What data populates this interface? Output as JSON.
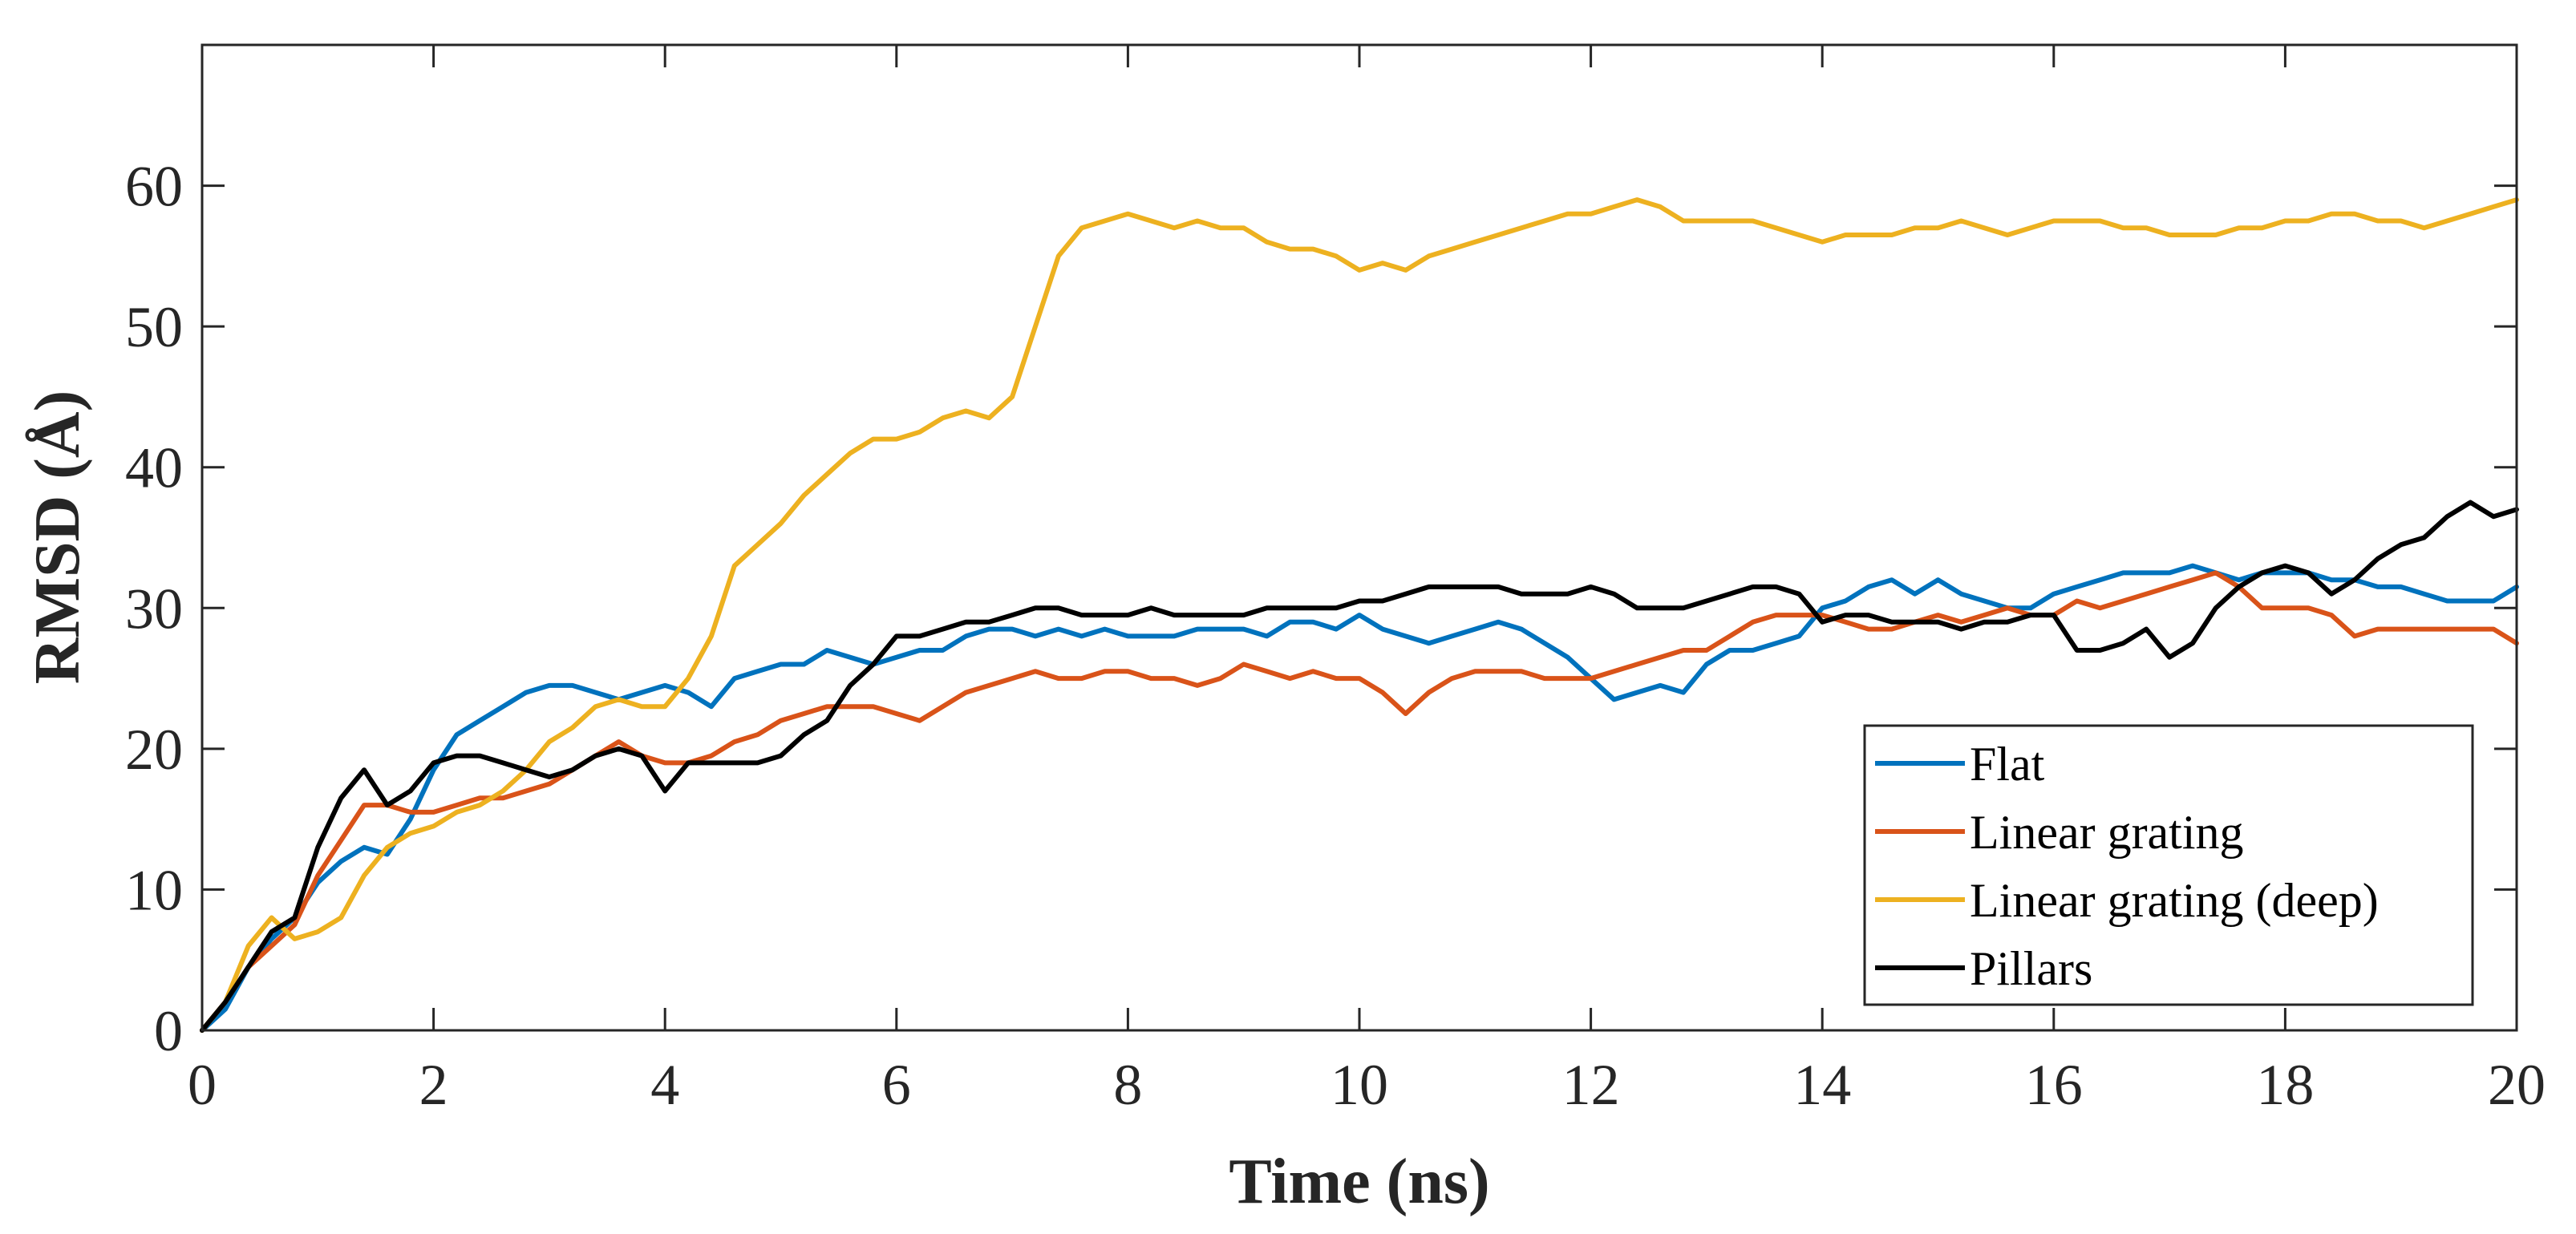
{
  "chart_data": {
    "type": "line",
    "xlabel": "Time (ns)",
    "ylabel": "RMSD (Å)",
    "xlim": [
      0,
      20
    ],
    "ylim": [
      0,
      70
    ],
    "xticks": [
      "0",
      "2",
      "4",
      "6",
      "8",
      "10",
      "12",
      "14",
      "16",
      "18",
      "20"
    ],
    "yticks": [
      "0",
      "10",
      "20",
      "30",
      "40",
      "50",
      "60"
    ],
    "grid": false,
    "legend_position": "bottom-right",
    "series": [
      {
        "name": "Flat",
        "color": "#0072BD",
        "x": [
          0,
          0.2,
          0.4,
          0.6,
          0.8,
          1,
          1.2,
          1.4,
          1.6,
          1.8,
          2,
          2.2,
          2.4,
          2.6,
          2.8,
          3,
          3.2,
          3.4,
          3.6,
          3.8,
          4,
          4.2,
          4.4,
          4.6,
          4.8,
          5,
          5.2,
          5.4,
          5.6,
          5.8,
          6,
          6.2,
          6.4,
          6.6,
          6.8,
          7,
          7.2,
          7.4,
          7.6,
          7.8,
          8,
          8.2,
          8.4,
          8.6,
          8.8,
          9,
          9.2,
          9.4,
          9.6,
          9.8,
          10,
          10.2,
          10.4,
          10.6,
          10.8,
          11,
          11.2,
          11.4,
          11.6,
          11.8,
          12,
          12.2,
          12.4,
          12.6,
          12.8,
          13,
          13.2,
          13.4,
          13.6,
          13.8,
          14,
          14.2,
          14.4,
          14.6,
          14.8,
          15,
          15.2,
          15.4,
          15.6,
          15.8,
          16,
          16.2,
          16.4,
          16.6,
          16.8,
          17,
          17.2,
          17.4,
          17.6,
          17.8,
          18,
          18.2,
          18.4,
          18.6,
          18.8,
          19,
          19.2,
          19.4,
          19.6,
          19.8,
          20
        ],
        "y": [
          0,
          1.5,
          4.5,
          6.5,
          8,
          10.5,
          12,
          13,
          12.5,
          15,
          18.5,
          21,
          22,
          23,
          24,
          24.5,
          24.5,
          24,
          23.5,
          24,
          24.5,
          24,
          23,
          25,
          25.5,
          26,
          26,
          27,
          26.5,
          26,
          26.5,
          27,
          27,
          28,
          28.5,
          28.5,
          28,
          28.5,
          28,
          28.5,
          28,
          28,
          28,
          28.5,
          28.5,
          28.5,
          28,
          29,
          29,
          28.5,
          29.5,
          28.5,
          28,
          27.5,
          28,
          28.5,
          29,
          28.5,
          27.5,
          26.5,
          25,
          23.5,
          24,
          24.5,
          24,
          26,
          27,
          27,
          27.5,
          28,
          30,
          30.5,
          31.5,
          32,
          31,
          32,
          31,
          30.5,
          30,
          30,
          31,
          31.5,
          32,
          32.5,
          32.5,
          32.5,
          33,
          32.5,
          32,
          32.5,
          32.5,
          32.5,
          32,
          32,
          31.5,
          31.5,
          31,
          30.5,
          30.5,
          30.5,
          31.5
        ]
      },
      {
        "name": "Linear grating",
        "color": "#D95319",
        "x": [
          0,
          0.2,
          0.4,
          0.6,
          0.8,
          1,
          1.2,
          1.4,
          1.6,
          1.8,
          2,
          2.2,
          2.4,
          2.6,
          2.8,
          3,
          3.2,
          3.4,
          3.6,
          3.8,
          4,
          4.2,
          4.4,
          4.6,
          4.8,
          5,
          5.2,
          5.4,
          5.6,
          5.8,
          6,
          6.2,
          6.4,
          6.6,
          6.8,
          7,
          7.2,
          7.4,
          7.6,
          7.8,
          8,
          8.2,
          8.4,
          8.6,
          8.8,
          9,
          9.2,
          9.4,
          9.6,
          9.8,
          10,
          10.2,
          10.4,
          10.6,
          10.8,
          11,
          11.2,
          11.4,
          11.6,
          11.8,
          12,
          12.2,
          12.4,
          12.6,
          12.8,
          13,
          13.2,
          13.4,
          13.6,
          13.8,
          14,
          14.2,
          14.4,
          14.6,
          14.8,
          15,
          15.2,
          15.4,
          15.6,
          15.8,
          16,
          16.2,
          16.4,
          16.6,
          16.8,
          17,
          17.2,
          17.4,
          17.6,
          17.8,
          18,
          18.2,
          18.4,
          18.6,
          18.8,
          19,
          19.2,
          19.4,
          19.6,
          19.8,
          20
        ],
        "y": [
          0,
          2,
          4.5,
          6,
          7.5,
          11,
          13.5,
          16,
          16,
          15.5,
          15.5,
          16,
          16.5,
          16.5,
          17,
          17.5,
          18.5,
          19.5,
          20.5,
          19.5,
          19,
          19,
          19.5,
          20.5,
          21,
          22,
          22.5,
          23,
          23,
          23,
          22.5,
          22,
          23,
          24,
          24.5,
          25,
          25.5,
          25,
          25,
          25.5,
          25.5,
          25,
          25,
          24.5,
          25,
          26,
          25.5,
          25,
          25.5,
          25,
          25,
          24,
          22.5,
          24,
          25,
          25.5,
          25.5,
          25.5,
          25,
          25,
          25,
          25.5,
          26,
          26.5,
          27,
          27,
          28,
          29,
          29.5,
          29.5,
          29.5,
          29,
          28.5,
          28.5,
          29,
          29.5,
          29,
          29.5,
          30,
          29.5,
          29.5,
          30.5,
          30,
          30.5,
          31,
          31.5,
          32,
          32.5,
          31.5,
          30,
          30,
          30,
          29.5,
          28,
          28.5,
          28.5,
          28.5,
          28.5,
          28.5,
          28.5,
          27.5
        ]
      },
      {
        "name": "Linear grating (deep)",
        "color": "#EDB120",
        "x": [
          0,
          0.2,
          0.4,
          0.6,
          0.8,
          1,
          1.2,
          1.4,
          1.6,
          1.8,
          2,
          2.2,
          2.4,
          2.6,
          2.8,
          3,
          3.2,
          3.4,
          3.6,
          3.8,
          4,
          4.2,
          4.4,
          4.6,
          4.8,
          5,
          5.2,
          5.4,
          5.6,
          5.8,
          6,
          6.2,
          6.4,
          6.6,
          6.8,
          7,
          7.2,
          7.4,
          7.6,
          7.8,
          8,
          8.2,
          8.4,
          8.6,
          8.8,
          9,
          9.2,
          9.4,
          9.6,
          9.8,
          10,
          10.2,
          10.4,
          10.6,
          10.8,
          11,
          11.2,
          11.4,
          11.6,
          11.8,
          12,
          12.2,
          12.4,
          12.6,
          12.8,
          13,
          13.2,
          13.4,
          13.6,
          13.8,
          14,
          14.2,
          14.4,
          14.6,
          14.8,
          15,
          15.2,
          15.4,
          15.6,
          15.8,
          16,
          16.2,
          16.4,
          16.6,
          16.8,
          17,
          17.2,
          17.4,
          17.6,
          17.8,
          18,
          18.2,
          18.4,
          18.6,
          18.8,
          19,
          19.2,
          19.4,
          19.6,
          19.8,
          20
        ],
        "y": [
          0,
          2,
          6,
          8,
          6.5,
          7,
          8,
          11,
          13,
          14,
          14.5,
          15.5,
          16,
          17,
          18.5,
          20.5,
          21.5,
          23,
          23.5,
          23,
          23,
          25,
          28,
          33,
          34.5,
          36,
          38,
          39.5,
          41,
          42,
          42,
          42.5,
          43.5,
          44,
          43.5,
          45,
          50,
          55,
          57,
          57.5,
          58,
          57.5,
          57,
          57.5,
          57,
          57,
          56,
          55.5,
          55.5,
          55,
          54,
          54.5,
          54,
          55,
          55.5,
          56,
          56.5,
          57,
          57.5,
          58,
          58,
          58.5,
          59,
          58.5,
          57.5,
          57.5,
          57.5,
          57.5,
          57,
          56.5,
          56,
          56.5,
          56.5,
          56.5,
          57,
          57,
          57.5,
          57,
          56.5,
          57,
          57.5,
          57.5,
          57.5,
          57,
          57,
          56.5,
          56.5,
          56.5,
          57,
          57,
          57.5,
          57.5,
          58,
          58,
          57.5,
          57.5,
          57,
          57.5,
          58,
          58.5,
          59
        ]
      },
      {
        "name": "Pillars",
        "color": "#000000",
        "x": [
          0,
          0.2,
          0.4,
          0.6,
          0.8,
          1,
          1.2,
          1.4,
          1.6,
          1.8,
          2,
          2.2,
          2.4,
          2.6,
          2.8,
          3,
          3.2,
          3.4,
          3.6,
          3.8,
          4,
          4.2,
          4.4,
          4.6,
          4.8,
          5,
          5.2,
          5.4,
          5.6,
          5.8,
          6,
          6.2,
          6.4,
          6.6,
          6.8,
          7,
          7.2,
          7.4,
          7.6,
          7.8,
          8,
          8.2,
          8.4,
          8.6,
          8.8,
          9,
          9.2,
          9.4,
          9.6,
          9.8,
          10,
          10.2,
          10.4,
          10.6,
          10.8,
          11,
          11.2,
          11.4,
          11.6,
          11.8,
          12,
          12.2,
          12.4,
          12.6,
          12.8,
          13,
          13.2,
          13.4,
          13.6,
          13.8,
          14,
          14.2,
          14.4,
          14.6,
          14.8,
          15,
          15.2,
          15.4,
          15.6,
          15.8,
          16,
          16.2,
          16.4,
          16.6,
          16.8,
          17,
          17.2,
          17.4,
          17.6,
          17.8,
          18,
          18.2,
          18.4,
          18.6,
          18.8,
          19,
          19.2,
          19.4,
          19.6,
          19.8,
          20
        ],
        "y": [
          0,
          2,
          4.5,
          7,
          8,
          13,
          16.5,
          18.5,
          16,
          17,
          19,
          19.5,
          19.5,
          19,
          18.5,
          18,
          18.5,
          19.5,
          20,
          19.5,
          17,
          19,
          19,
          19,
          19,
          19.5,
          21,
          22,
          24.5,
          26,
          28,
          28,
          28.5,
          29,
          29,
          29.5,
          30,
          30,
          29.5,
          29.5,
          29.5,
          30,
          29.5,
          29.5,
          29.5,
          29.5,
          30,
          30,
          30,
          30,
          30.5,
          30.5,
          31,
          31.5,
          31.5,
          31.5,
          31.5,
          31,
          31,
          31,
          31.5,
          31,
          30,
          30,
          30,
          30.5,
          31,
          31.5,
          31.5,
          31,
          29,
          29.5,
          29.5,
          29,
          29,
          29,
          28.5,
          29,
          29,
          29.5,
          29.5,
          27,
          27,
          27.5,
          28.5,
          26.5,
          27.5,
          30,
          31.5,
          32.5,
          33,
          32.5,
          31,
          32,
          33.5,
          34.5,
          35,
          36.5,
          37.5,
          36.5,
          37
        ]
      }
    ]
  }
}
